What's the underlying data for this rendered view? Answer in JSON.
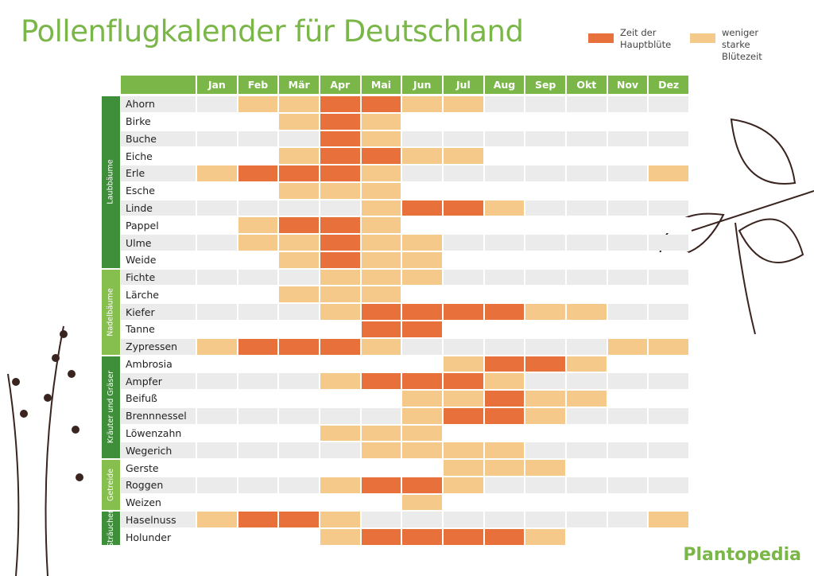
{
  "header": {
    "title": "Pollenflugkalender für Deutschland",
    "logo": "Plantopedia"
  },
  "legend": [
    {
      "label": "Zeit der Hauptblüte",
      "color": "#e8703a"
    },
    {
      "label": "weniger starke Blütezeit",
      "color": "#f5c98a"
    }
  ],
  "table": {
    "months": [
      "Jan",
      "Feb",
      "Mär",
      "Apr",
      "Mai",
      "Jun",
      "Jul",
      "Aug",
      "Sep",
      "Okt",
      "Nov",
      "Dez"
    ],
    "groups": [
      {
        "name": "Laubbäume",
        "color": "#3f8f3a",
        "rows": [
          {
            "name": "Ahorn",
            "months": [
              0,
              1,
              1,
              2,
              2,
              1,
              1,
              0,
              0,
              0,
              0,
              0
            ]
          },
          {
            "name": "Birke",
            "months": [
              0,
              0,
              1,
              2,
              1,
              0,
              0,
              0,
              0,
              0,
              0,
              0
            ]
          },
          {
            "name": "Buche",
            "months": [
              0,
              0,
              0,
              2,
              1,
              0,
              0,
              0,
              0,
              0,
              0,
              0
            ]
          },
          {
            "name": "Eiche",
            "months": [
              0,
              0,
              1,
              2,
              2,
              1,
              1,
              0,
              0,
              0,
              0,
              0
            ]
          },
          {
            "name": "Erle",
            "months": [
              1,
              2,
              2,
              2,
              1,
              0,
              0,
              0,
              0,
              0,
              0,
              1
            ]
          },
          {
            "name": "Esche",
            "months": [
              0,
              0,
              1,
              1,
              1,
              0,
              0,
              0,
              0,
              0,
              0,
              0
            ]
          },
          {
            "name": "Linde",
            "months": [
              0,
              0,
              0,
              0,
              1,
              2,
              2,
              1,
              0,
              0,
              0,
              0
            ]
          },
          {
            "name": "Pappel",
            "months": [
              0,
              1,
              2,
              2,
              1,
              0,
              0,
              0,
              0,
              0,
              0,
              0
            ]
          },
          {
            "name": "Ulme",
            "months": [
              0,
              1,
              1,
              2,
              1,
              1,
              0,
              0,
              0,
              0,
              0,
              0
            ]
          },
          {
            "name": "Weide",
            "months": [
              0,
              0,
              1,
              2,
              1,
              1,
              0,
              0,
              0,
              0,
              0,
              0
            ]
          }
        ]
      },
      {
        "name": "Nadelbäume",
        "color": "#86bf4e",
        "rows": [
          {
            "name": "Fichte",
            "months": [
              0,
              0,
              0,
              1,
              1,
              1,
              0,
              0,
              0,
              0,
              0,
              0
            ]
          },
          {
            "name": "Lärche",
            "months": [
              0,
              0,
              1,
              1,
              1,
              0,
              0,
              0,
              0,
              0,
              0,
              0
            ]
          },
          {
            "name": "Kiefer",
            "months": [
              0,
              0,
              0,
              1,
              2,
              2,
              2,
              2,
              1,
              1,
              0,
              0
            ]
          },
          {
            "name": "Tanne",
            "months": [
              0,
              0,
              0,
              0,
              2,
              2,
              0,
              0,
              0,
              0,
              0,
              0
            ]
          },
          {
            "name": "Zypressen",
            "months": [
              1,
              2,
              2,
              2,
              1,
              0,
              0,
              0,
              0,
              0,
              1,
              1
            ]
          }
        ]
      },
      {
        "name": "Kräuter und Gräser",
        "color": "#3f8f3a",
        "rows": [
          {
            "name": "Ambrosia",
            "months": [
              0,
              0,
              0,
              0,
              0,
              0,
              1,
              2,
              2,
              1,
              0,
              0
            ]
          },
          {
            "name": "Ampfer",
            "months": [
              0,
              0,
              0,
              1,
              2,
              2,
              2,
              1,
              0,
              0,
              0,
              0
            ]
          },
          {
            "name": "Beifuß",
            "months": [
              0,
              0,
              0,
              0,
              0,
              1,
              1,
              2,
              1,
              1,
              0,
              0
            ]
          },
          {
            "name": "Brennnessel",
            "months": [
              0,
              0,
              0,
              0,
              0,
              1,
              2,
              2,
              1,
              0,
              0,
              0
            ]
          },
          {
            "name": "Löwenzahn",
            "months": [
              0,
              0,
              0,
              1,
              1,
              1,
              0,
              0,
              0,
              0,
              0,
              0
            ]
          },
          {
            "name": "Wegerich",
            "months": [
              0,
              0,
              0,
              0,
              1,
              1,
              1,
              1,
              0,
              0,
              0,
              0
            ]
          }
        ]
      },
      {
        "name": "Getreide",
        "color": "#86bf4e",
        "rows": [
          {
            "name": "Gerste",
            "months": [
              0,
              0,
              0,
              0,
              0,
              0,
              1,
              1,
              1,
              0,
              0,
              0
            ]
          },
          {
            "name": "Roggen",
            "months": [
              0,
              0,
              0,
              1,
              2,
              2,
              1,
              0,
              0,
              0,
              0,
              0
            ]
          },
          {
            "name": "Weizen",
            "months": [
              0,
              0,
              0,
              0,
              0,
              1,
              0,
              0,
              0,
              0,
              0,
              0
            ]
          }
        ]
      },
      {
        "name": "Sträucher",
        "color": "#3f8f3a",
        "rows": [
          {
            "name": "Haselnuss",
            "months": [
              1,
              2,
              2,
              1,
              0,
              0,
              0,
              0,
              0,
              0,
              0,
              1
            ]
          },
          {
            "name": "Holunder",
            "months": [
              0,
              0,
              0,
              1,
              2,
              2,
              2,
              2,
              1,
              0,
              0,
              0
            ]
          }
        ]
      }
    ]
  }
}
